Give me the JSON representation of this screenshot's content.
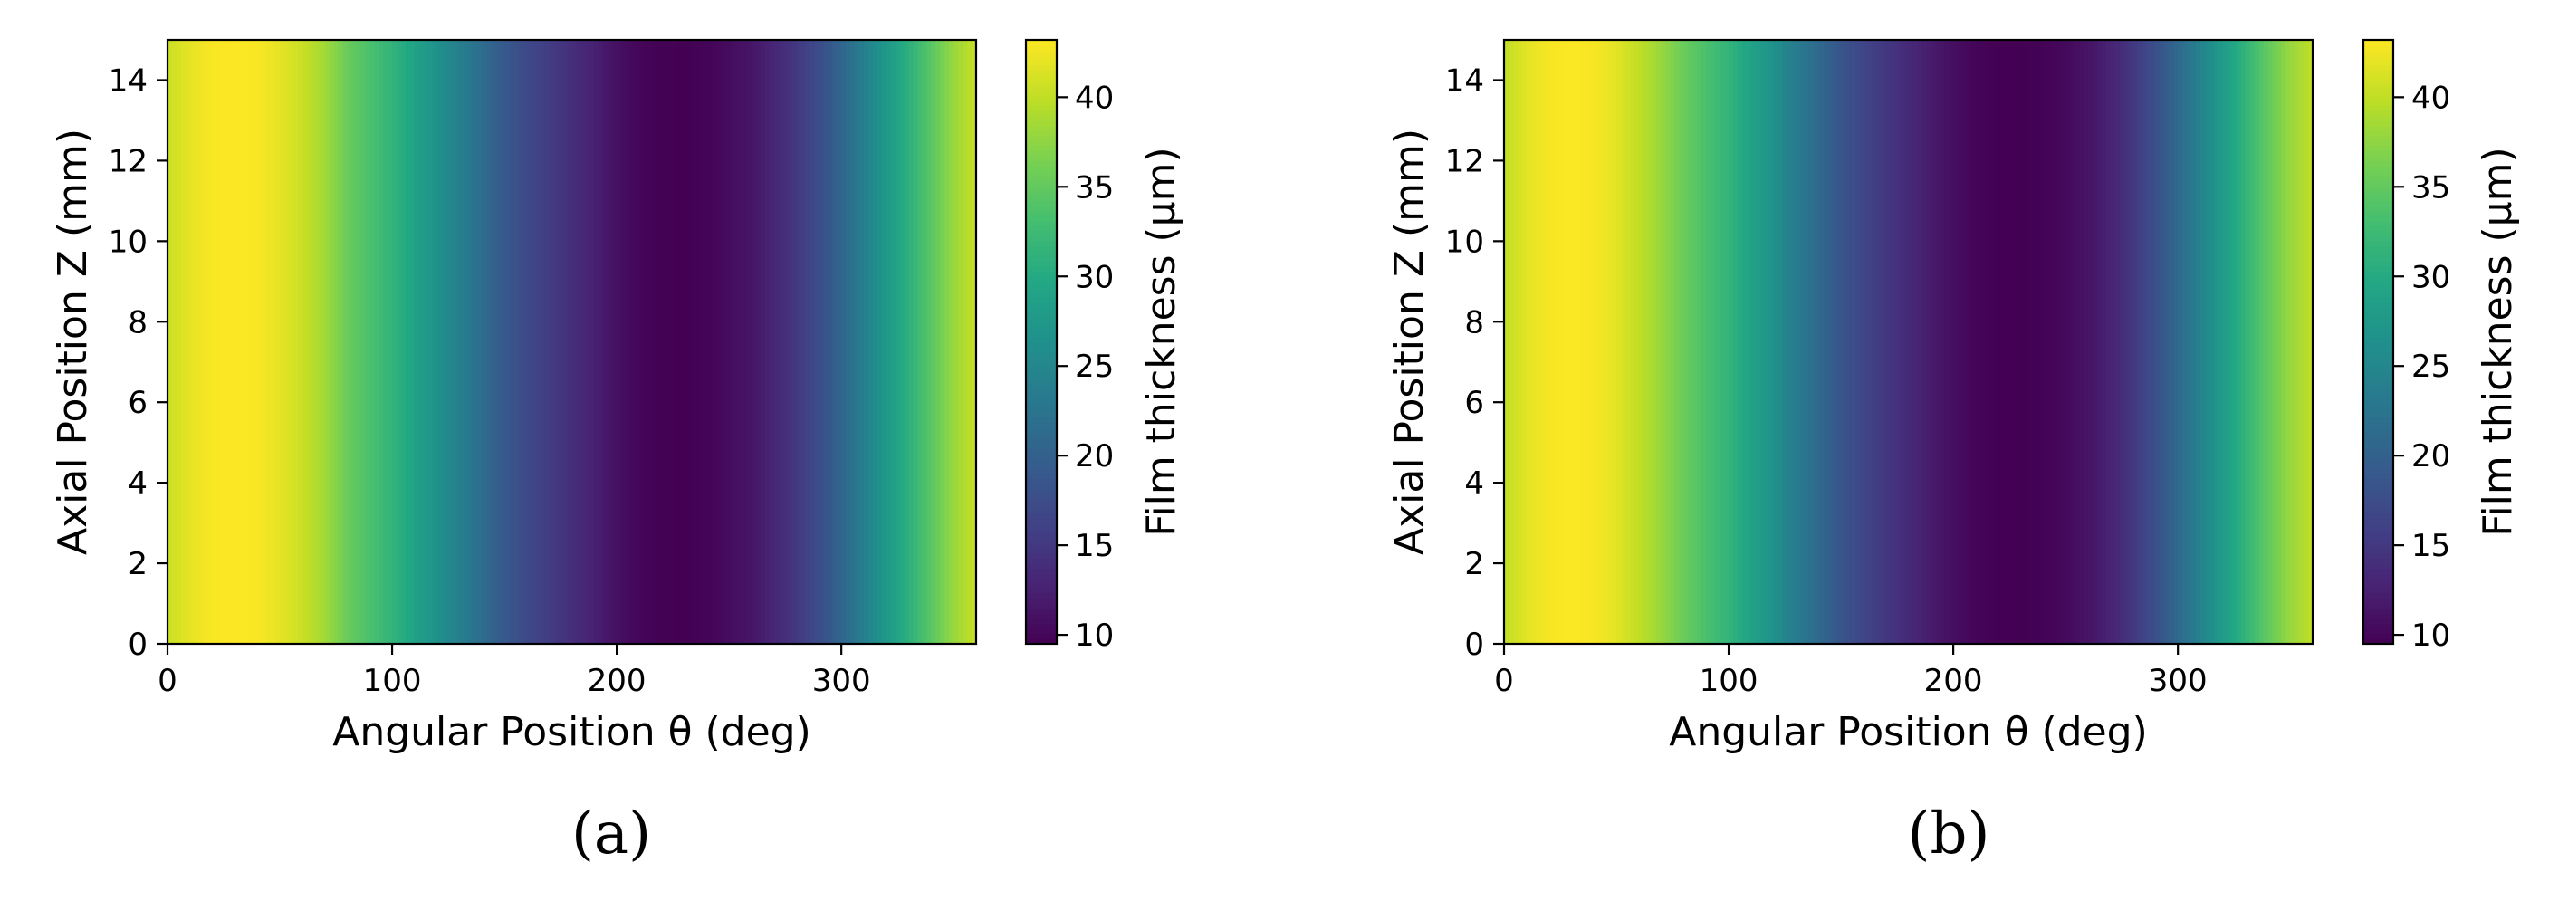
{
  "chart_data": [
    {
      "type": "heatmap",
      "panel_label": "(a)",
      "xlabel": "Angular Position θ (deg)",
      "ylabel": "Axial Position Z (mm)",
      "colorbar_label": "Film thickness (μm)",
      "xlim": [
        0,
        360
      ],
      "ylim": [
        0,
        15
      ],
      "xticks": [
        0,
        100,
        200,
        300
      ],
      "yticks": [
        0,
        2,
        4,
        6,
        8,
        10,
        12,
        14
      ],
      "colorbar_ticks": [
        10,
        15,
        20,
        25,
        30,
        35,
        40
      ],
      "vmin": 9.5,
      "vmax": 43.2,
      "colormap": "viridis",
      "theta": [
        0,
        10,
        20,
        30,
        40,
        50,
        60,
        70,
        80,
        90,
        100,
        110,
        120,
        130,
        140,
        150,
        160,
        170,
        180,
        190,
        200,
        210,
        220,
        230,
        240,
        250,
        260,
        270,
        280,
        290,
        300,
        310,
        320,
        330,
        340,
        350,
        360
      ],
      "film_thickness": [
        40.5,
        42.0,
        43.0,
        43.2,
        43.0,
        42.0,
        40.5,
        38.5,
        35.5,
        33.5,
        31.5,
        29.0,
        26.5,
        24.0,
        21.5,
        19.0,
        17.0,
        15.5,
        14.0,
        12.5,
        11.0,
        10.0,
        9.6,
        9.5,
        9.8,
        10.5,
        11.5,
        13.0,
        15.0,
        17.5,
        20.5,
        24.0,
        27.5,
        31.0,
        34.5,
        38.0,
        40.5
      ]
    },
    {
      "type": "heatmap",
      "panel_label": "(b)",
      "xlabel": "Angular Position θ (deg)",
      "ylabel": "Axial Position Z (mm)",
      "colorbar_label": "Film thickness (μm)",
      "xlim": [
        0,
        360
      ],
      "ylim": [
        0,
        15
      ],
      "xticks": [
        0,
        100,
        200,
        300
      ],
      "yticks": [
        0,
        2,
        4,
        6,
        8,
        10,
        12,
        14
      ],
      "colorbar_ticks": [
        10,
        15,
        20,
        25,
        30,
        35,
        40
      ],
      "vmin": 9.5,
      "vmax": 43.2,
      "colormap": "viridis",
      "theta": [
        0,
        10,
        20,
        30,
        40,
        50,
        60,
        70,
        80,
        90,
        100,
        110,
        120,
        130,
        140,
        150,
        160,
        170,
        180,
        190,
        200,
        210,
        220,
        230,
        240,
        250,
        260,
        270,
        280,
        290,
        300,
        310,
        320,
        330,
        340,
        350,
        360
      ],
      "film_thickness": [
        40.0,
        41.8,
        42.9,
        43.2,
        42.9,
        41.8,
        40.0,
        38.0,
        35.5,
        33.5,
        31.5,
        29.0,
        26.5,
        23.5,
        21.0,
        18.5,
        16.5,
        15.0,
        13.5,
        12.0,
        10.8,
        9.9,
        9.5,
        9.5,
        9.7,
        10.3,
        11.3,
        12.8,
        15.0,
        17.8,
        21.0,
        24.5,
        28.0,
        31.5,
        35.0,
        38.0,
        40.0
      ]
    }
  ]
}
